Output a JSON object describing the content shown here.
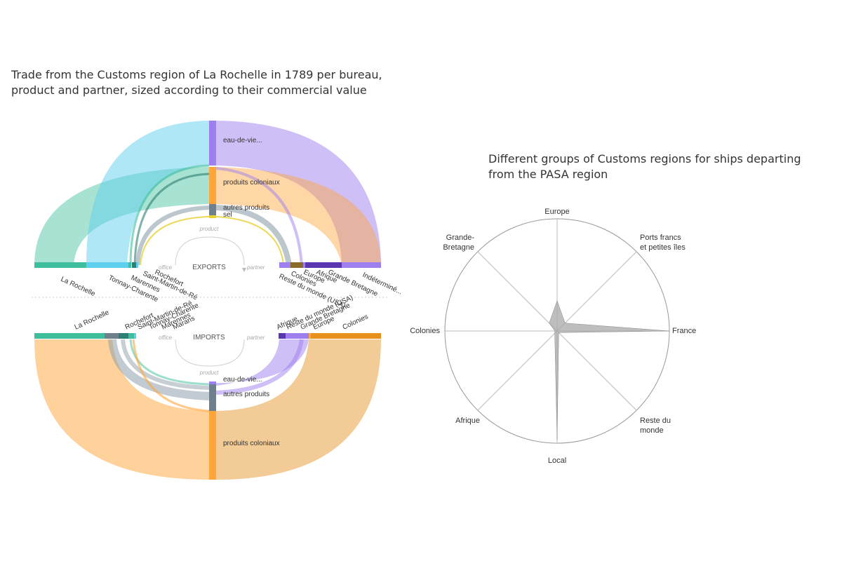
{
  "chart_data": [
    {
      "type": "flow",
      "title_lines": [
        "Trade from the Customs region of La Rochelle in 1789 per bureau,",
        "product and partner, sized according to their commercial value"
      ],
      "exports": {
        "label": "EXPORTS",
        "offices": [
          "La Rochelle",
          "Tonnay-Charente",
          "Marennes",
          "Saint-Martin-de-Ré",
          "Rochefort"
        ],
        "products": [
          "eau-de-vie...",
          "produits coloniaux",
          "autres produits",
          "sel"
        ],
        "partners": [
          "Reste du monde (USA)",
          "Colonies",
          "Europe",
          "Afrique",
          "Grande Bretagne",
          "Indéterminé..."
        ]
      },
      "imports": {
        "label": "IMPORTS",
        "offices": [
          "La Rochelle",
          "Rochefort",
          "Saint-Martin-de-Ré",
          "Tonnay-Charente",
          "Marennes",
          "Marans"
        ],
        "products": [
          "eau-de-vie...",
          "autres produits",
          "produits coloniaux"
        ],
        "partners": [
          "Afrique",
          "Reste du monde (USA)",
          "Grande Bretagne",
          "Europe",
          "Colonies"
        ]
      },
      "hints": {
        "product": "product",
        "office": "office",
        "partner": "partner"
      }
    },
    {
      "type": "radar",
      "title": "Different groups of Customs regions for ships departing from the PASA region",
      "axes": [
        {
          "label": "Europe",
          "value": 0.27
        },
        {
          "label": "Ports francs et petites îles",
          "value": 0.1
        },
        {
          "label": "France",
          "value": 1.0
        },
        {
          "label": "Reste du monde",
          "value": 0.02
        },
        {
          "label": "Local",
          "value": 0.97
        },
        {
          "label": "Afrique",
          "value": 0.03
        },
        {
          "label": "Colonies",
          "value": 0.02
        },
        {
          "label": "Grande-Bretagne",
          "value": 0.1
        }
      ],
      "fill_color": "#a8a8a8",
      "stroke_color": "#888888"
    }
  ],
  "colors": {
    "la_rochelle": "#3dbe9c",
    "tonnay": "#5fcfef",
    "marennes": "#2d7f73",
    "violet": "#9e7ff0",
    "orange": "#ffa53a",
    "grey": "#6f7f8c",
    "brown": "#8a6b2a",
    "dark_violet": "#5a36b0"
  }
}
